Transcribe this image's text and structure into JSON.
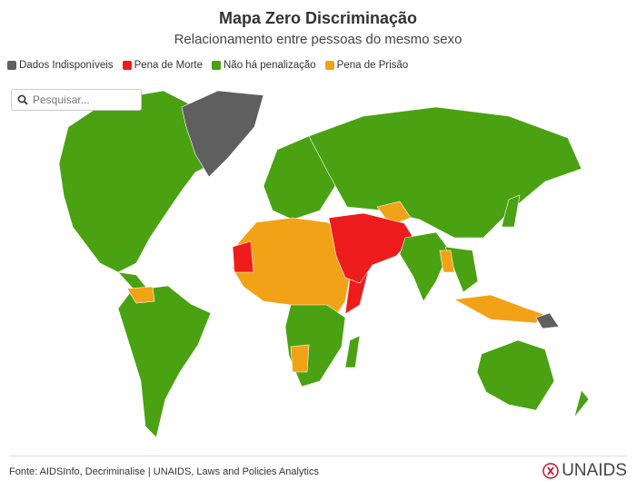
{
  "header": {
    "title": "Mapa Zero Discriminação",
    "subtitle": "Relacionamento entre pessoas do mesmo sexo"
  },
  "legend": [
    {
      "name": "Dados Indisponíveis",
      "color": "#5f5f5f"
    },
    {
      "name": "Pena de Morte",
      "color": "#ee1c1c"
    },
    {
      "name": "Não há penalização",
      "color": "#4aa212"
    },
    {
      "name": "Pena de Prisão",
      "color": "#f2a216"
    }
  ],
  "search": {
    "placeholder": "Pesquisar..."
  },
  "footer": {
    "source": "Fonte: AIDSInfo, Decriminalise | UNAIDS, Laws and Policies Analytics",
    "logo": "UNAIDS"
  }
}
